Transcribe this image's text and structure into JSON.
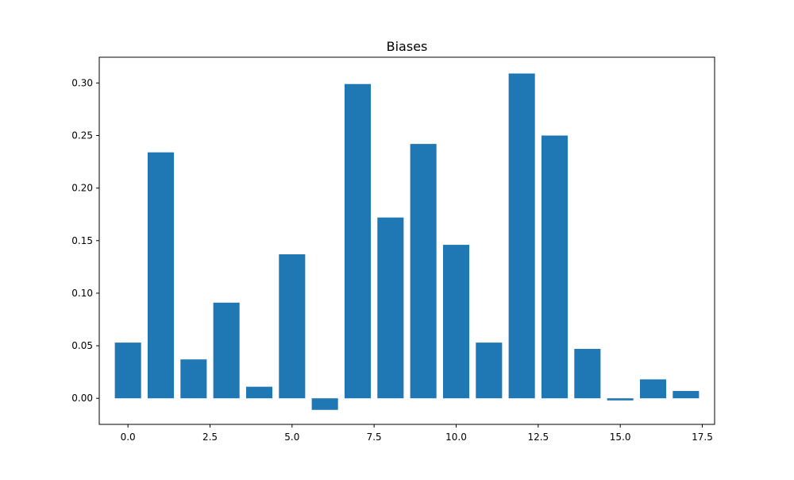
{
  "chart_data": {
    "type": "bar",
    "title": "Biases",
    "xlabel": "",
    "ylabel": "",
    "x": [
      0,
      1,
      2,
      3,
      4,
      5,
      6,
      7,
      8,
      9,
      10,
      11,
      12,
      13,
      14,
      15,
      16,
      17
    ],
    "values": [
      0.053,
      0.234,
      0.037,
      0.091,
      0.011,
      0.137,
      -0.011,
      0.299,
      0.172,
      0.242,
      0.146,
      0.053,
      0.309,
      0.25,
      0.047,
      -0.002,
      0.018,
      0.007
    ],
    "xlim": [
      -0.875,
      17.875
    ],
    "ylim": [
      -0.0248,
      0.3245
    ],
    "xticks": [
      0.0,
      2.5,
      5.0,
      7.5,
      10.0,
      12.5,
      15.0,
      17.5
    ],
    "xtick_labels": [
      "0.0",
      "2.5",
      "5.0",
      "7.5",
      "10.0",
      "12.5",
      "15.0",
      "17.5"
    ],
    "yticks": [
      0.0,
      0.05,
      0.1,
      0.15,
      0.2,
      0.25,
      0.3
    ],
    "ytick_labels": [
      "0.00",
      "0.05",
      "0.10",
      "0.15",
      "0.20",
      "0.25",
      "0.30"
    ],
    "bar_width": 0.8,
    "bar_color": "#1f77b4",
    "grid": false,
    "legend": "none"
  }
}
